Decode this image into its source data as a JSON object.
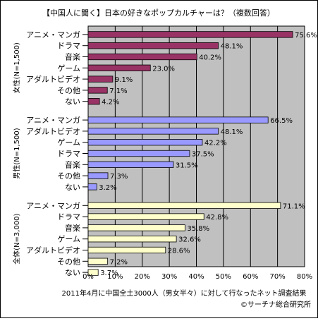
{
  "chart_data": {
    "type": "bar",
    "orientation": "horizontal",
    "title": "【中国人に聞く】日本の好きなポップカルチャーは？（複数回答）",
    "xlim": [
      0,
      80
    ],
    "x_ticks": [
      "0%",
      "10%",
      "20%",
      "30%",
      "40%",
      "50%",
      "60%",
      "70%",
      "80%"
    ],
    "grid": true,
    "groups": [
      {
        "name": "女性(N=1,500)",
        "color": "#993366",
        "bars": [
          {
            "category": "アニメ・マンガ",
            "value": 75.6,
            "label": "75.6%"
          },
          {
            "category": "ドラマ",
            "value": 48.1,
            "label": "48.1%"
          },
          {
            "category": "音楽",
            "value": 40.2,
            "label": "40.2%"
          },
          {
            "category": "ゲーム",
            "value": 23.0,
            "label": "23.0%"
          },
          {
            "category": "アダルトビデオ",
            "value": 9.1,
            "label": "9.1%"
          },
          {
            "category": "その他",
            "value": 7.1,
            "label": "7.1%"
          },
          {
            "category": "ない",
            "value": 4.2,
            "label": "4.2%"
          }
        ]
      },
      {
        "name": "男性(N=1,500)",
        "color": "#9999FF",
        "bars": [
          {
            "category": "アニメ・マンガ",
            "value": 66.5,
            "label": "66.5%"
          },
          {
            "category": "アダルトビデオ",
            "value": 48.1,
            "label": "48.1%"
          },
          {
            "category": "ゲーム",
            "value": 42.2,
            "label": "42.2%"
          },
          {
            "category": "ドラマ",
            "value": 37.5,
            "label": "37.5%"
          },
          {
            "category": "音楽",
            "value": 31.5,
            "label": "31.5%"
          },
          {
            "category": "その他",
            "value": 7.3,
            "label": "7.3%"
          },
          {
            "category": "ない",
            "value": 3.2,
            "label": "3.2%"
          }
        ]
      },
      {
        "name": "全体(N=3,000)",
        "color": "#FFFFCC",
        "bars": [
          {
            "category": "アニメ・マンガ",
            "value": 71.1,
            "label": "71.1%"
          },
          {
            "category": "ドラマ",
            "value": 42.8,
            "label": "42.8%"
          },
          {
            "category": "音楽",
            "value": 35.8,
            "label": "35.8%"
          },
          {
            "category": "ゲーム",
            "value": 32.6,
            "label": "32.6%"
          },
          {
            "category": "アダルトビデオ",
            "value": 28.6,
            "label": "28.6%"
          },
          {
            "category": "その他",
            "value": 7.2,
            "label": "7.2%"
          },
          {
            "category": "ない",
            "value": 3.7,
            "label": "3.7%"
          }
        ]
      }
    ],
    "footnote": "2011年4月に中国全土3000人（男女半々）に対して行なったネット調査結果",
    "source": "©サーチナ総合研究所"
  },
  "colors": {
    "plot_background": "#C0C0C0",
    "grid": "#000000"
  }
}
